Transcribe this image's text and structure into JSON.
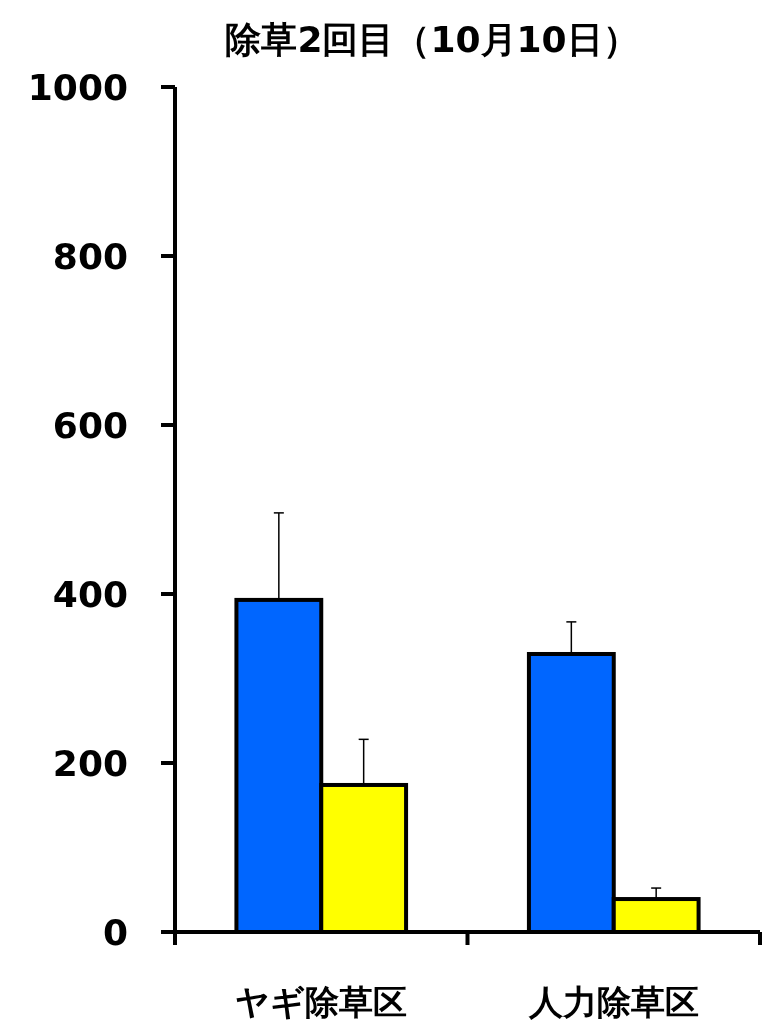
{
  "chart_data": {
    "type": "bar",
    "title": "除草2回目（10月10日）",
    "categories": [
      "ヤギ除草区",
      "人力除草区"
    ],
    "series": [
      {
        "color": "#0066ff",
        "values": [
          393,
          329
        ],
        "errors": [
          103,
          38
        ]
      },
      {
        "color": "#ffff00",
        "values": [
          174,
          39
        ],
        "errors": [
          54,
          13
        ]
      }
    ],
    "ylim": [
      0,
      1000
    ],
    "yticks": [
      0,
      200,
      400,
      600,
      800,
      1000
    ]
  }
}
